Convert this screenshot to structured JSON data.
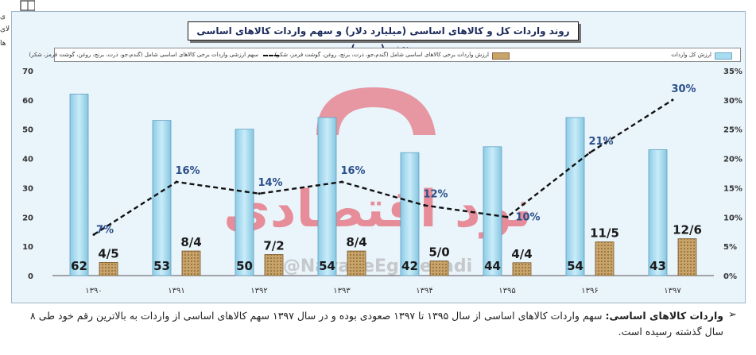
{
  "chart_data": {
    "type": "bar",
    "title": "روند واردات کل و کالاهای اساسی (میلیارد دلار) و سهم واردات کالاهای اساسی منتخب(درصد)",
    "categories": [
      "۱۳۹۰",
      "۱۳۹۱",
      "۱۳۹۲",
      "۱۳۹۳",
      "۱۳۹۴",
      "۱۳۹۵",
      "۱۳۹۶",
      "۱۳۹۷"
    ],
    "series": [
      {
        "name": "ارزش کل واردات",
        "type": "bar",
        "axis": "left",
        "values": [
          62,
          53,
          50,
          54,
          42,
          44,
          54,
          43
        ],
        "labels": [
          "62",
          "53",
          "50",
          "54",
          "42",
          "44",
          "54",
          "43"
        ],
        "color": "#a9dcf0"
      },
      {
        "name": "ارزش واردات برخی کالاهای اساسی شامل (گندم،جو، ذرت، برنج، روغن، گوشت قرمز، شکر)",
        "type": "bar",
        "axis": "left",
        "values": [
          4.5,
          8.4,
          7.2,
          8.4,
          5.0,
          4.4,
          11.5,
          12.6
        ],
        "labels": [
          "4/5",
          "8/4",
          "7/2",
          "8/4",
          "5/0",
          "4/4",
          "11/5",
          "12/6"
        ],
        "color": "#c9a46a"
      },
      {
        "name": "سهم ارزشی واردات برخی کالاهای اساسی شامل (گندم،جو، ذرت، برنج، روغن، گوشت قرمز، شکر)",
        "type": "line",
        "axis": "right",
        "style": "dashed",
        "values": [
          7,
          16,
          14,
          16,
          12,
          10,
          21,
          30
        ],
        "labels": [
          "7%",
          "16%",
          "14%",
          "16%",
          "12%",
          "10%",
          "21%",
          "30%"
        ],
        "color": "#111111"
      }
    ],
    "y_left": {
      "ticks": [
        "0",
        "10",
        "20",
        "30",
        "40",
        "50",
        "60",
        "70"
      ],
      "lim": [
        0,
        70
      ]
    },
    "y_right": {
      "ticks": [
        "0%",
        "5%",
        "10%",
        "15%",
        "20%",
        "25%",
        "30%",
        "35%"
      ],
      "lim": [
        0,
        35
      ]
    },
    "grid": false,
    "legend_position": "top"
  },
  "watermark": {
    "text": "نود اقتصادی",
    "handle": "@NavadeEghtesadi",
    "color": "#e33a4a"
  },
  "caption": {
    "heading": "واردات کالاهای اساسی:",
    "body": " سهم واردات کالاهای اساسی از سال ۱۳۹۵ تا ۱۳۹۷ صعودی بوده و در سال ۱۳۹۷ سهم کالاهای اساسی از واردات به بالاترین رقم خود طی ۸ سال گذشته رسیده است.",
    "marker": "➢"
  },
  "edge_fragments": [
    "ی",
    "لای",
    "ها"
  ]
}
